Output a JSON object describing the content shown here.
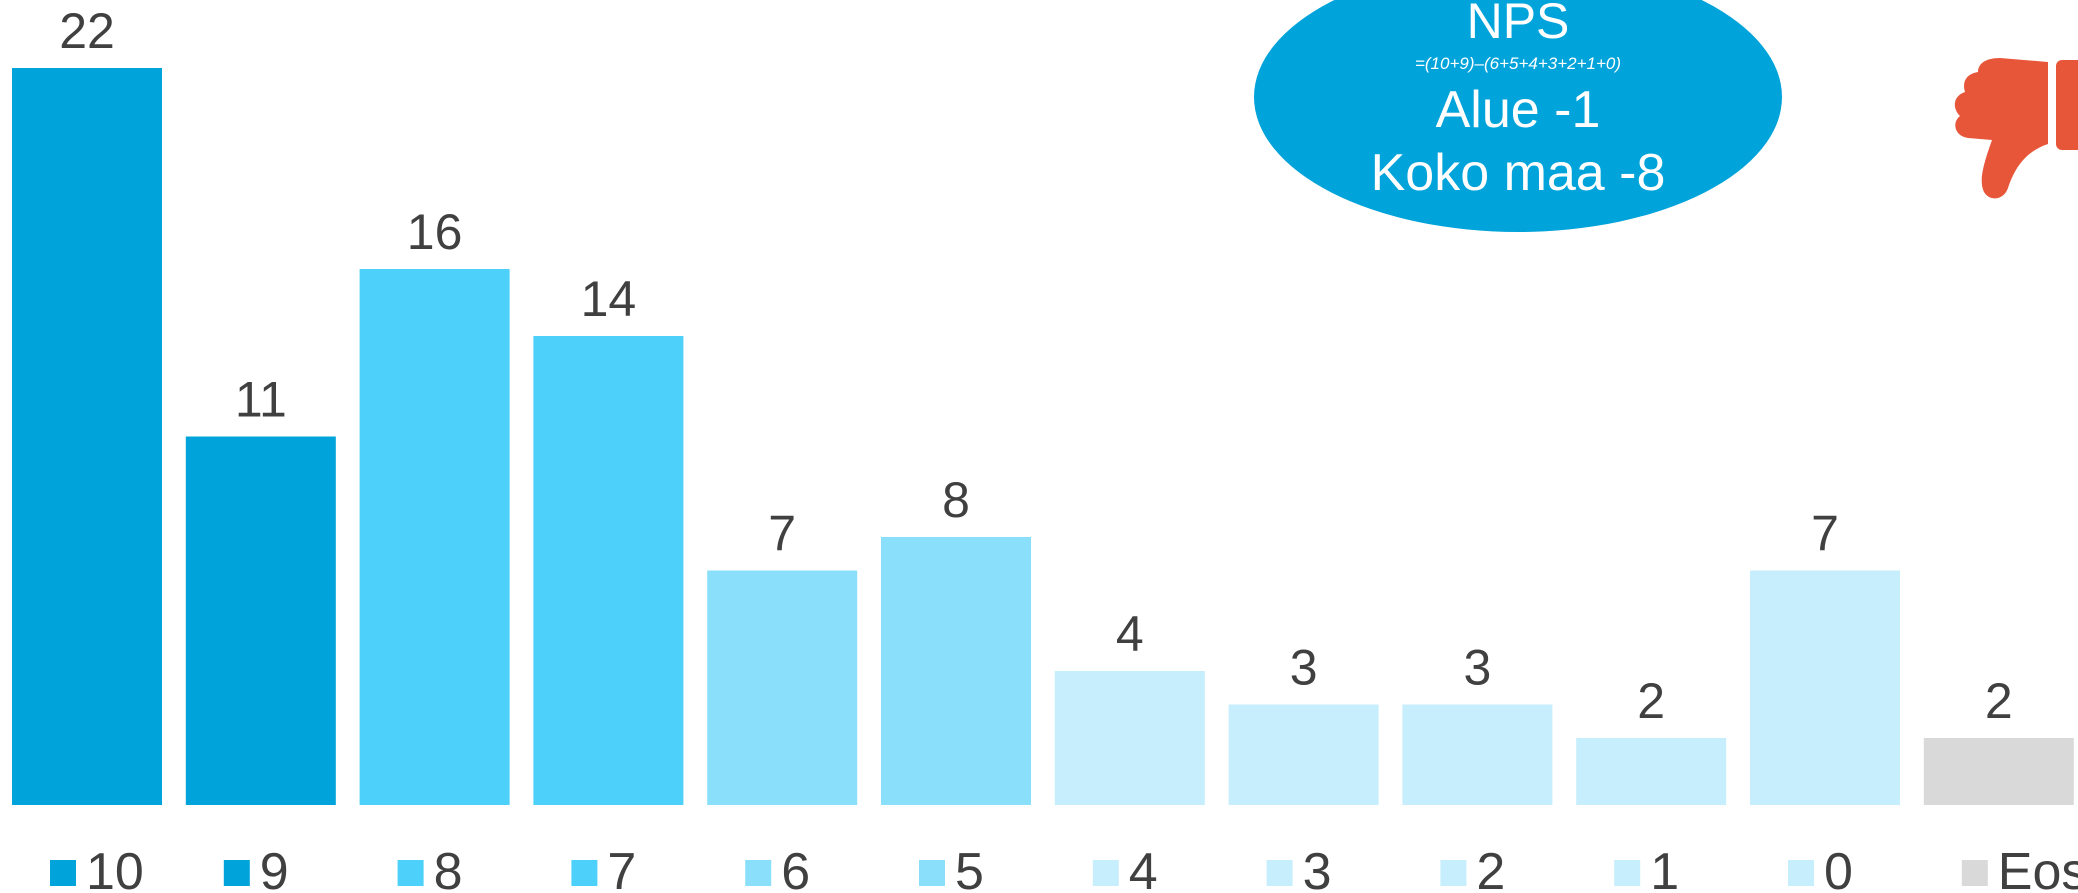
{
  "chart_data": {
    "type": "bar",
    "categories": [
      "10",
      "9",
      "8",
      "7",
      "6",
      "5",
      "4",
      "3",
      "2",
      "1",
      "0",
      "Eos"
    ],
    "values": [
      22,
      11,
      16,
      14,
      7,
      8,
      4,
      3,
      3,
      2,
      7,
      2
    ],
    "ylim": [
      0,
      22
    ],
    "grid": false,
    "legend_position": "bottom",
    "colors": [
      "#00A3DA",
      "#00A3DA",
      "#4DD0FA",
      "#4DD0FA",
      "#8ADFFA",
      "#8ADFFA",
      "#C6EEFC",
      "#C6EEFC",
      "#C6EEFC",
      "#C6EEFC",
      "#C6EEFC",
      "#D9D9D9"
    ]
  },
  "nps_badge": {
    "title": "NPS",
    "formula": "=(10+9)–(6+5+4+3+2+1+0)",
    "line1": "Alue -1",
    "line2": "Koko maa -8",
    "color": "#00A3DA"
  },
  "icons": {
    "thumbs_down": {
      "name": "thumbs-down-icon",
      "color": "#E8563A"
    }
  }
}
